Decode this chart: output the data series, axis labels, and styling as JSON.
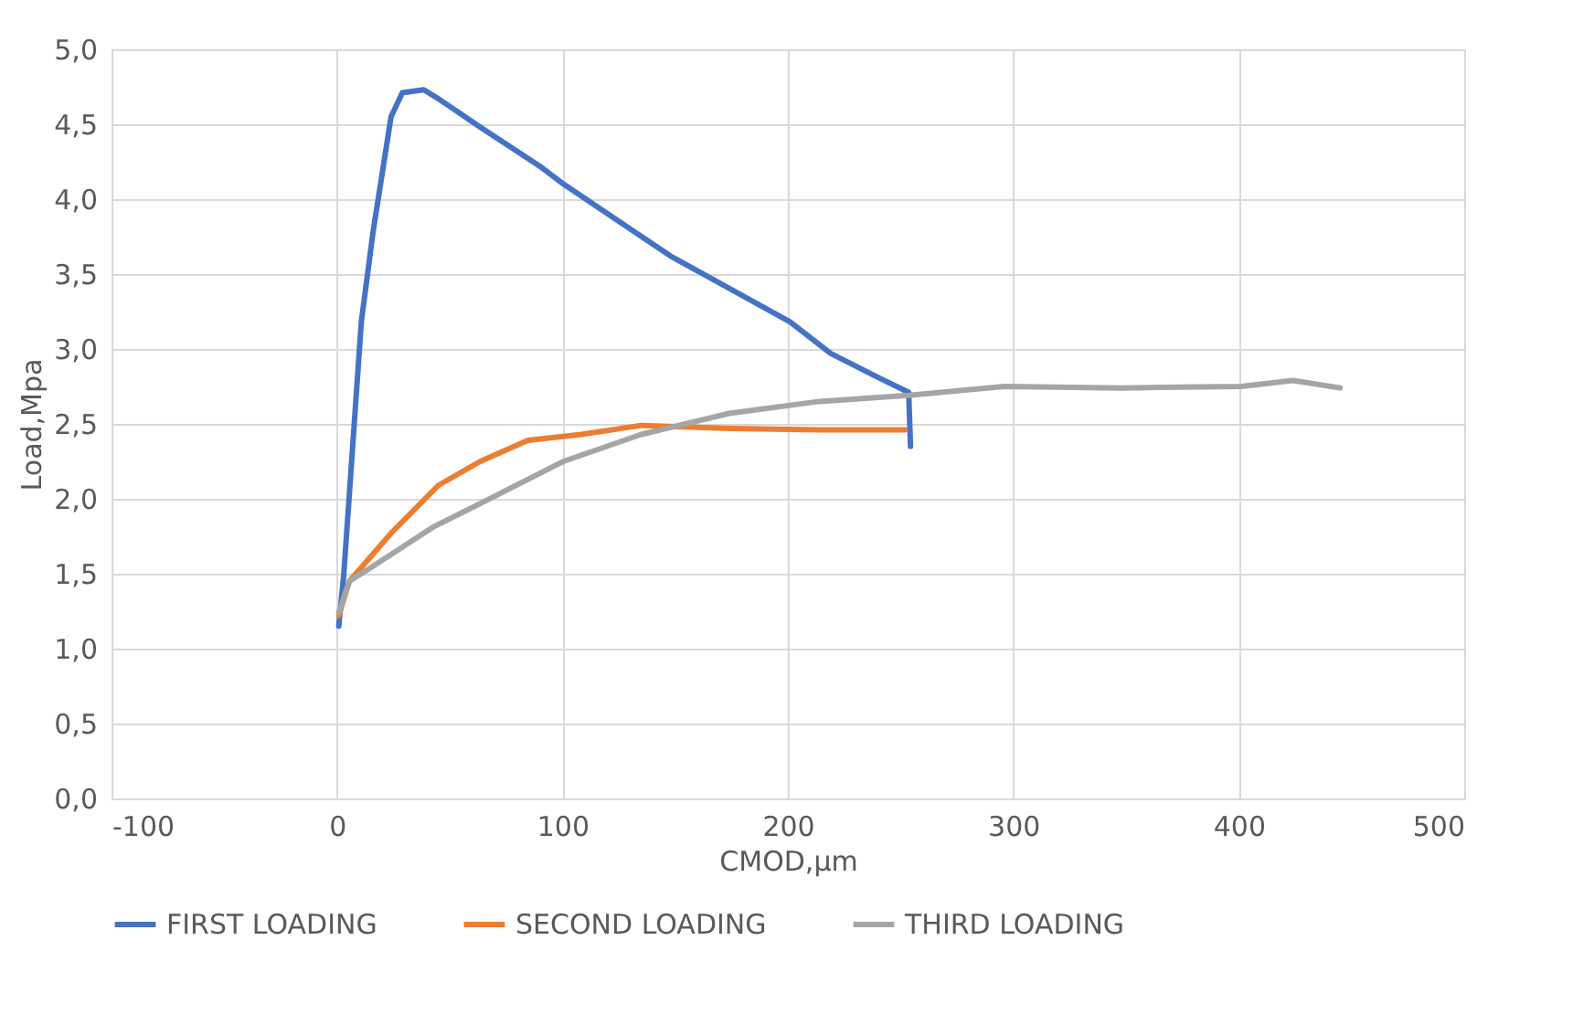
{
  "chart_data": {
    "type": "line",
    "xlabel": "CMOD,μm",
    "ylabel": "Load,Mpa",
    "xlim": [
      -100,
      500
    ],
    "xticks": [
      -100,
      0,
      100,
      200,
      300,
      400,
      500
    ],
    "ylim": [
      0,
      5
    ],
    "yticks": [
      {
        "value": 0,
        "label": "0,0"
      },
      {
        "value": 0.5,
        "label": "0,5"
      },
      {
        "value": 1,
        "label": "1,0"
      },
      {
        "value": 1.5,
        "label": "1,5"
      },
      {
        "value": 2,
        "label": "2,0"
      },
      {
        "value": 2.5,
        "label": "2,5"
      },
      {
        "value": 3,
        "label": "3,0"
      },
      {
        "value": 3.5,
        "label": "3,5"
      },
      {
        "value": 4,
        "label": "4,0"
      },
      {
        "value": 4.5,
        "label": "4,5"
      },
      {
        "value": 5,
        "label": "5,0"
      }
    ],
    "grid": true,
    "legend": "bottom",
    "marker": "none",
    "line_style": "solid",
    "series": [
      {
        "name": "FIRST LOADING",
        "color": "#4472c4",
        "x": [
          0.8,
          3,
          10.8,
          16,
          24,
          29,
          38.5,
          45,
          63.6,
          90,
          100.5,
          148,
          201,
          219,
          240,
          253.6,
          254.4
        ],
        "values": [
          1.15,
          1.49,
          3.18,
          3.78,
          4.55,
          4.71,
          4.73,
          4.67,
          4.48,
          4.22,
          4.1,
          3.62,
          3.18,
          2.97,
          2.81,
          2.71,
          2.35
        ]
      },
      {
        "name": "SECOND LOADING",
        "color": "#ed7d31",
        "x": [
          0.8,
          5.5,
          24,
          45,
          63.6,
          84.7,
          108.5,
          135,
          174,
          214,
          252
        ],
        "values": [
          1.22,
          1.45,
          1.77,
          2.09,
          2.25,
          2.39,
          2.43,
          2.49,
          2.47,
          2.46,
          2.46
        ]
      },
      {
        "name": "THIRD LOADING",
        "color": "#a5a5a5",
        "x": [
          0.8,
          5.5,
          16,
          42.5,
          69,
          100.5,
          135,
          174,
          214,
          253.6,
          296,
          348,
          401,
          424,
          445
        ],
        "values": [
          1.24,
          1.45,
          1.55,
          1.81,
          2.01,
          2.25,
          2.43,
          2.57,
          2.65,
          2.69,
          2.75,
          2.74,
          2.75,
          2.79,
          2.74
        ]
      }
    ]
  }
}
